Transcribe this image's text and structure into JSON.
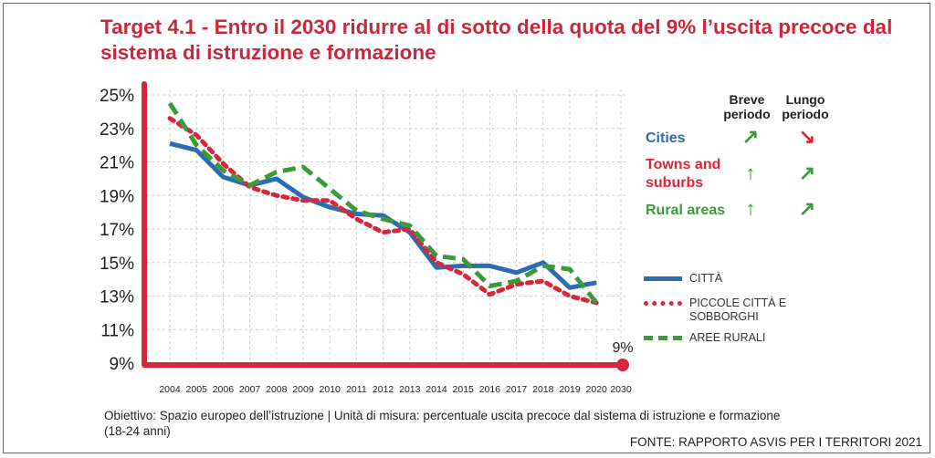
{
  "title": "Target 4.1 - Entro il 2030 ridurre al di sotto della quota del 9% l’uscita precoce dal sistema di istruzione e formazione",
  "footnote": "Obiettivo: Spazio europeo dell’istruzione | Unità di misura: percentuale uscita precoce dal sistema di istruzione e formazione (18-24 anni)",
  "source": "FONTE: RAPPORTO ASVIS PER I TERRITORI 2021",
  "trend_headers": {
    "short": "Breve periodo",
    "long": "Lungo periodo"
  },
  "trends": [
    {
      "label": "Cities",
      "color": "#2b6cb3",
      "short_arrow": "↗",
      "short_color": "#3c9a3a",
      "long_arrow": "↘",
      "long_color": "#d6283a"
    },
    {
      "label": "Towns and suburbs",
      "color": "#d6283a",
      "short_arrow": "↑",
      "short_color": "#3c9a3a",
      "long_arrow": "↗",
      "long_color": "#3c9a3a"
    },
    {
      "label": "Rural areas",
      "color": "#3c9a3a",
      "short_arrow": "↑",
      "short_color": "#3c9a3a",
      "long_arrow": "↗",
      "long_color": "#3c9a3a"
    }
  ],
  "target_label": "9%",
  "chart_data": {
    "type": "line",
    "categories": [
      "2004",
      "2005",
      "2006",
      "2007",
      "2008",
      "2009",
      "2010",
      "2011",
      "2012",
      "2013",
      "2014",
      "2015",
      "2016",
      "2017",
      "2018",
      "2019",
      "2020",
      "2030"
    ],
    "y_ticks": [
      "9%",
      "11%",
      "13%",
      "15%",
      "17%",
      "19%",
      "21%",
      "23%",
      "25%"
    ],
    "ylim": [
      9,
      25
    ],
    "grid": true,
    "target": 9,
    "series": [
      {
        "name": "CITTÀ",
        "color": "#2b6cb3",
        "dash": "solid",
        "values": [
          22.1,
          21.7,
          20.1,
          19.6,
          20.0,
          18.9,
          18.3,
          17.9,
          17.8,
          16.8,
          14.7,
          14.8,
          14.8,
          14.4,
          15.0,
          13.5,
          13.8,
          null
        ]
      },
      {
        "name": "PICCOLE CITTÀ E SOBBORGHI",
        "color": "#d6283a",
        "dash": "dotted",
        "values": [
          23.6,
          22.6,
          20.9,
          19.5,
          19.0,
          18.7,
          18.7,
          17.6,
          16.8,
          17.0,
          15.0,
          14.3,
          13.1,
          13.7,
          13.9,
          13.0,
          12.6,
          null
        ]
      },
      {
        "name": "AREE RURALI",
        "color": "#3c9a3a",
        "dash": "dashed",
        "values": [
          24.5,
          22.0,
          20.5,
          19.6,
          20.4,
          20.7,
          19.4,
          18.1,
          17.6,
          17.2,
          15.4,
          15.2,
          13.6,
          13.9,
          14.8,
          14.6,
          12.6,
          null
        ]
      }
    ]
  }
}
